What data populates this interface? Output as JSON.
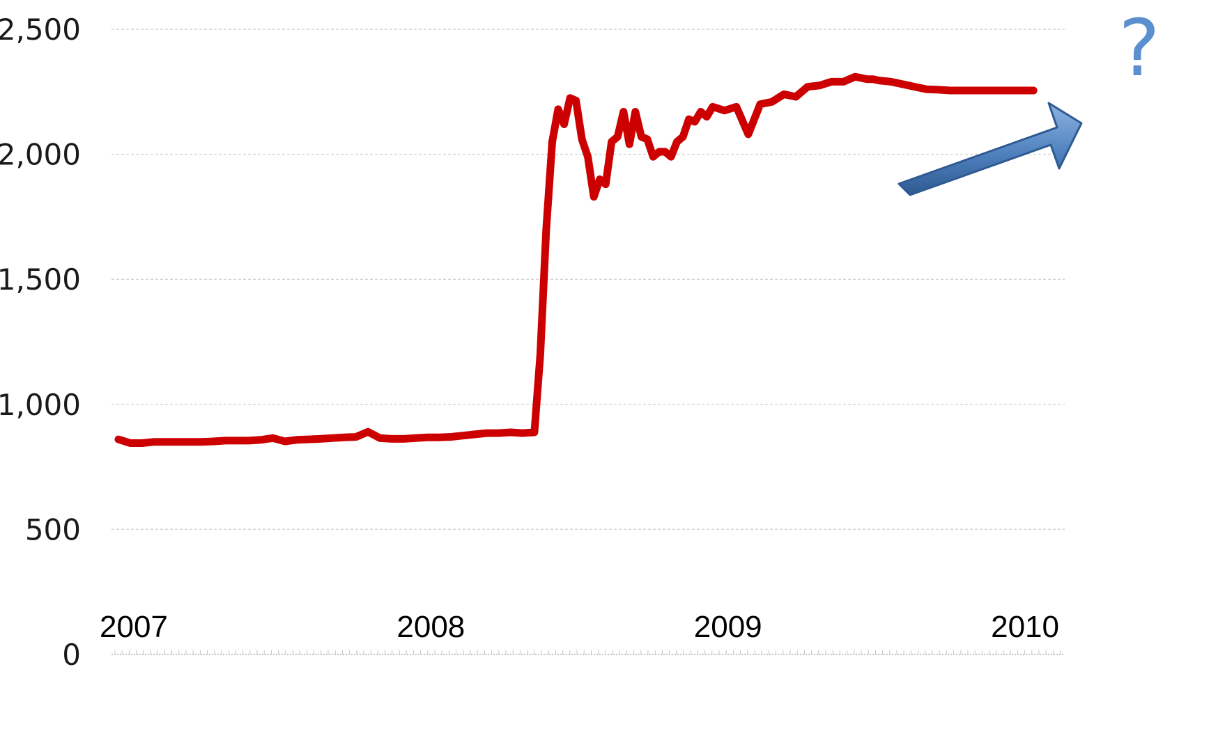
{
  "chart_data": {
    "type": "line",
    "title": "",
    "xlabel": "",
    "ylabel": "",
    "ylim": [
      0,
      2500
    ],
    "y_ticks": [
      "0",
      "500",
      "1,000",
      "1,500",
      "2,000",
      "2,500"
    ],
    "y_tick_values": [
      0,
      500,
      1000,
      1500,
      2000,
      2500
    ],
    "x_ticks": [
      "2007",
      "2008",
      "2009",
      "2010"
    ],
    "x_tick_values": [
      2007.0,
      2008.0,
      2009.0,
      2010.0
    ],
    "xlim": [
      2007.0,
      2010.15
    ],
    "grid": true,
    "legend": "none",
    "series": [
      {
        "color": "#cc0000",
        "x": [
          2007.0,
          2007.04,
          2007.08,
          2007.12,
          2007.16,
          2007.2,
          2007.24,
          2007.28,
          2007.32,
          2007.36,
          2007.4,
          2007.44,
          2007.48,
          2007.52,
          2007.56,
          2007.6,
          2007.64,
          2007.68,
          2007.72,
          2007.76,
          2007.8,
          2007.84,
          2007.88,
          2007.92,
          2007.96,
          2008.0,
          2008.04,
          2008.08,
          2008.12,
          2008.16,
          2008.2,
          2008.24,
          2008.28,
          2008.32,
          2008.36,
          2008.4,
          2008.42,
          2008.44,
          2008.46,
          2008.48,
          2008.5,
          2008.52,
          2008.54,
          2008.56,
          2008.58,
          2008.6,
          2008.62,
          2008.64,
          2008.66,
          2008.68,
          2008.7,
          2008.72,
          2008.74,
          2008.76,
          2008.78,
          2008.8,
          2008.82,
          2008.84,
          2008.86,
          2008.88,
          2008.9,
          2008.92,
          2008.94,
          2008.96,
          2008.98,
          2009.0,
          2009.04,
          2009.08,
          2009.12,
          2009.16,
          2009.2,
          2009.24,
          2009.28,
          2009.32,
          2009.36,
          2009.4,
          2009.44,
          2009.48,
          2009.52,
          2009.54,
          2009.56,
          2009.6,
          2009.64,
          2009.68,
          2009.72,
          2009.76,
          2009.8,
          2009.84,
          2009.88,
          2009.92,
          2009.96,
          2010.0,
          2010.04,
          2010.08
        ],
        "values": [
          860,
          845,
          845,
          850,
          850,
          850,
          850,
          850,
          852,
          855,
          855,
          855,
          858,
          865,
          852,
          858,
          860,
          862,
          865,
          868,
          870,
          890,
          865,
          862,
          862,
          865,
          868,
          868,
          870,
          875,
          880,
          885,
          885,
          888,
          885,
          888,
          1200,
          1700,
          2050,
          2180,
          2120,
          2225,
          2215,
          2060,
          1990,
          1830,
          1900,
          1880,
          2050,
          2070,
          2170,
          2040,
          2170,
          2070,
          2060,
          1990,
          2010,
          2010,
          1990,
          2050,
          2070,
          2140,
          2130,
          2170,
          2150,
          2190,
          2175,
          2190,
          2080,
          2200,
          2210,
          2240,
          2230,
          2270,
          2275,
          2290,
          2290,
          2310,
          2300,
          2300,
          2295,
          2290,
          2280,
          2270,
          2260,
          2258,
          2255,
          2255,
          2255,
          2255,
          2255,
          2255,
          2255,
          2255
        ]
      }
    ],
    "annotations": [
      {
        "type": "text",
        "text": "?",
        "color": "#5b8fd0"
      },
      {
        "type": "arrow",
        "icon": "up-right-arrow",
        "color": "#4a7ebb",
        "direction": "up-right"
      }
    ]
  }
}
